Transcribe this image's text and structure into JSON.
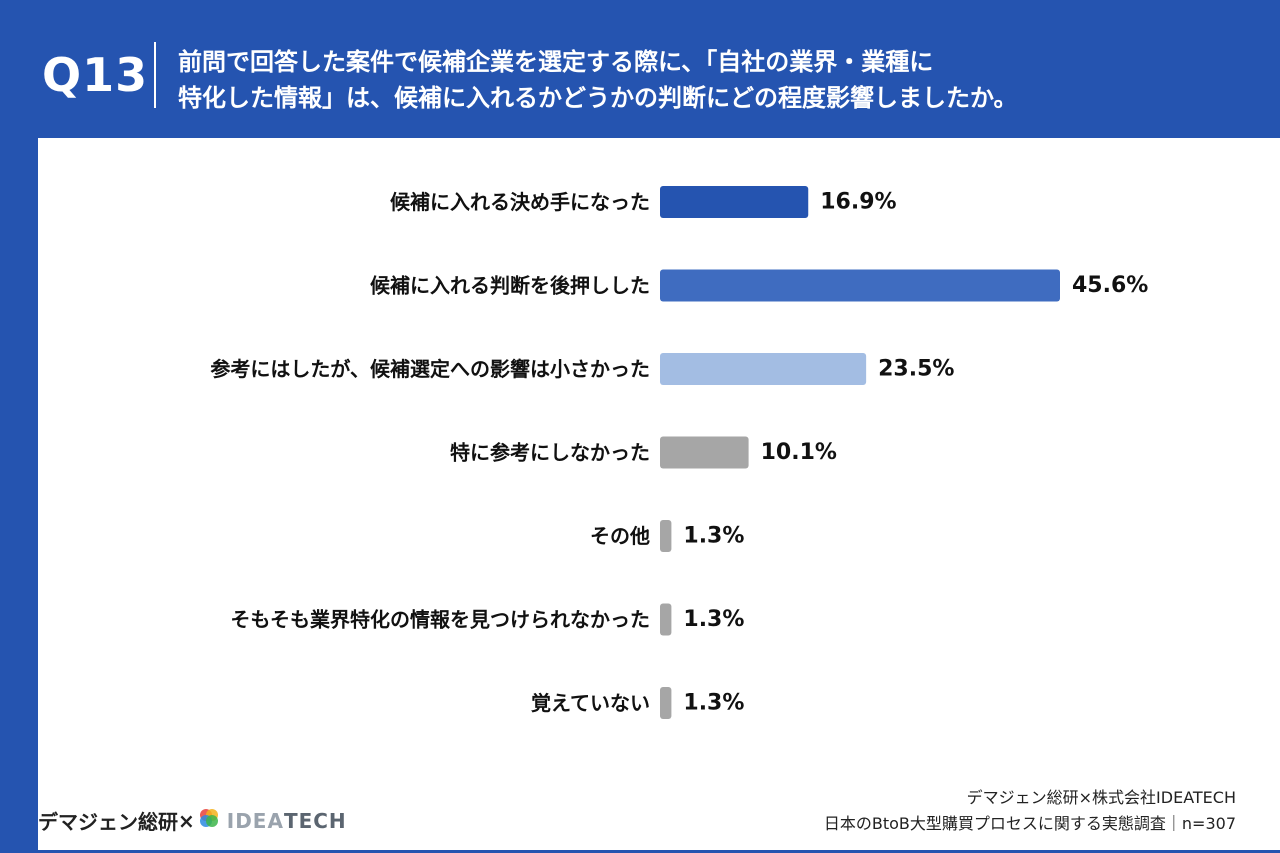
{
  "header": {
    "question_label": "Q13",
    "question_line1": "前問で回答した案件で候補企業を選定する際に、「自社の業界・業種に",
    "question_line2": "特化した情報」は、候補に入れるかどうかの判断にどの程度影響しましたか。"
  },
  "chart_data": {
    "type": "bar",
    "orientation": "horizontal",
    "categories": [
      "候補に入れる決め手になった",
      "候補に入れる判断を後押しした",
      "参考にはしたが、候補選定への影響は小さかった",
      "特に参考にしなかった",
      "その他",
      "そもそも業界特化の情報を見つけられなかった",
      "覚えていない"
    ],
    "values": [
      16.9,
      45.6,
      23.5,
      10.1,
      1.3,
      1.3,
      1.3
    ],
    "value_labels": [
      "16.9%",
      "45.6%",
      "23.5%",
      "10.1%",
      "1.3%",
      "1.3%",
      "1.3%"
    ],
    "bar_colors": [
      "#2554b0",
      "#3f6cc0",
      "#a3bde3",
      "#a6a6a6",
      "#a6a6a6",
      "#a6a6a6",
      "#a6a6a6"
    ],
    "xlim": [
      0,
      50
    ],
    "grid": false,
    "legend": "none"
  },
  "footer": {
    "source_line1": "デマジェン総研×株式会社IDEATECH",
    "source_line2": "日本のBtoB大型購買プロセスに関する実態調査｜n=307",
    "logo_brand": "デマジェン総研",
    "logo_times": "×",
    "logo_idea": "IDEA",
    "logo_tech": "TECH"
  },
  "colors": {
    "background": "#2554b0",
    "panel": "#ffffff",
    "text": "#111111"
  }
}
